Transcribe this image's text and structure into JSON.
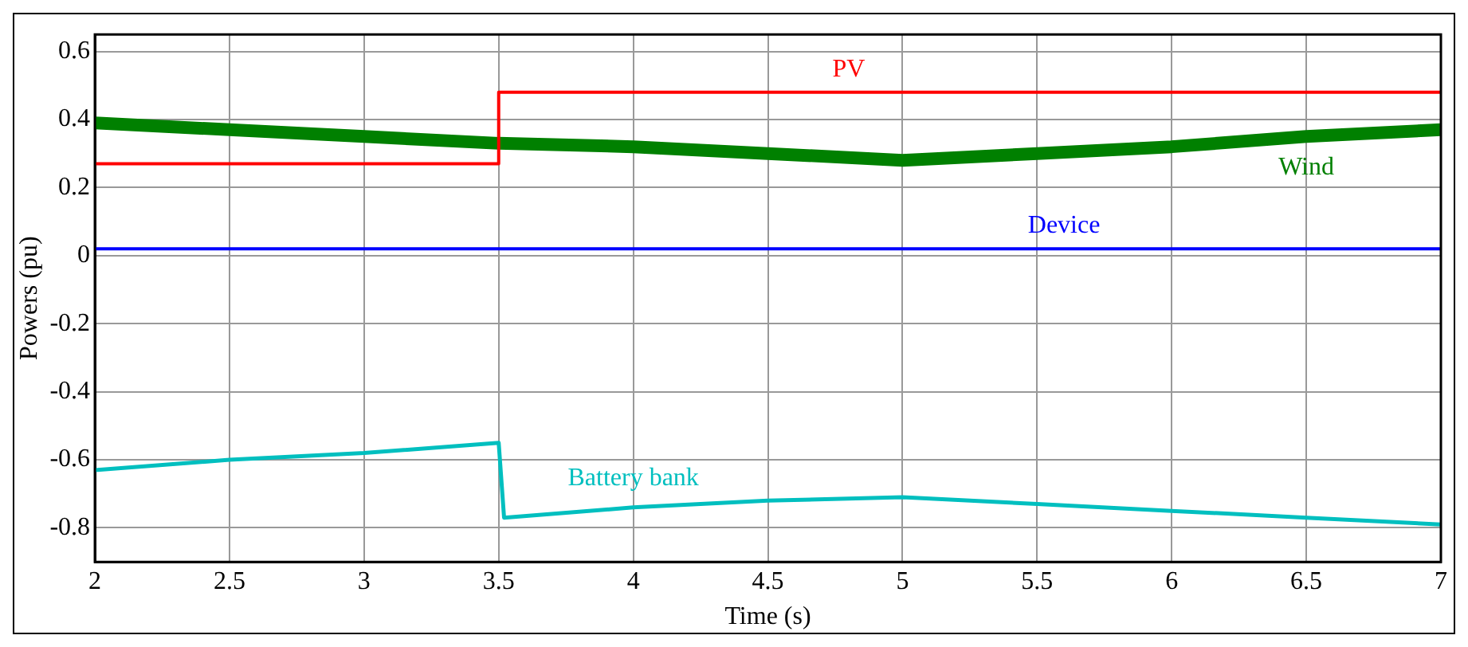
{
  "chart_data": {
    "type": "line",
    "xlabel": "Time (s)",
    "ylabel": "Powers (pu)",
    "xlim": [
      2,
      7
    ],
    "xticks": [
      2,
      2.5,
      3,
      3.5,
      4,
      4.5,
      5,
      5.5,
      6,
      6.5,
      7
    ],
    "ylim": [
      -0.9,
      0.65
    ],
    "yticks": [
      -0.8,
      -0.6,
      -0.4,
      -0.2,
      0,
      0.2,
      0.4,
      0.6
    ],
    "grid": true,
    "legend": false,
    "marker": "none",
    "line_style": "solid",
    "series": [
      {
        "name": "PV",
        "color": "#ff0000",
        "x": [
          2,
          3.5,
          3.5,
          7
        ],
        "values": [
          0.27,
          0.27,
          0.48,
          0.48
        ]
      },
      {
        "name": "Wind",
        "color": "#008000",
        "x": [
          2,
          2.5,
          3,
          3.5,
          4,
          4.5,
          5,
          5.5,
          6,
          6.5,
          7
        ],
        "values": [
          0.39,
          0.37,
          0.35,
          0.33,
          0.32,
          0.3,
          0.28,
          0.3,
          0.32,
          0.35,
          0.37
        ]
      },
      {
        "name": "Device",
        "color": "#0000ff",
        "x": [
          2,
          7
        ],
        "values": [
          0.02,
          0.02
        ]
      },
      {
        "name": "Battery bank",
        "color": "#00bfbf",
        "x": [
          2,
          2.5,
          3,
          3.5,
          3.52,
          4,
          4.5,
          5,
          5.5,
          6,
          6.5,
          7
        ],
        "values": [
          -0.63,
          -0.6,
          -0.58,
          -0.55,
          -0.77,
          -0.74,
          -0.72,
          -0.71,
          -0.73,
          -0.75,
          -0.77,
          -0.79
        ]
      }
    ]
  }
}
